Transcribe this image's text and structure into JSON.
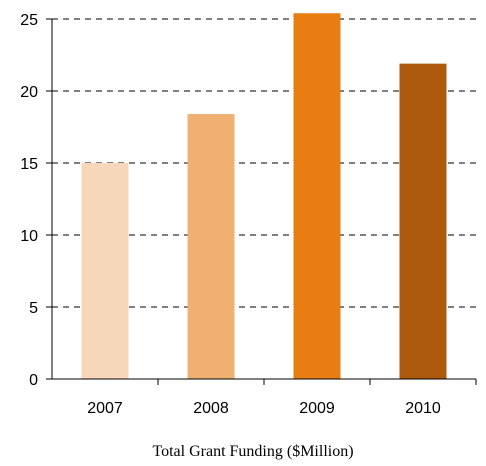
{
  "chart_data": {
    "type": "bar",
    "categories": [
      "2007",
      "2008",
      "2009",
      "2010"
    ],
    "values": [
      15.0,
      18.4,
      25.4,
      21.9
    ],
    "colors": [
      "#F7D7B9",
      "#F0B071",
      "#E87E13",
      "#AD5A0C"
    ],
    "title": "",
    "xlabel": "Total Grant Funding ($Million)",
    "ylabel": "",
    "ylim": [
      0,
      25
    ],
    "yticks": [
      "0",
      "5",
      "10",
      "15",
      "20",
      "25"
    ],
    "grid": true
  }
}
